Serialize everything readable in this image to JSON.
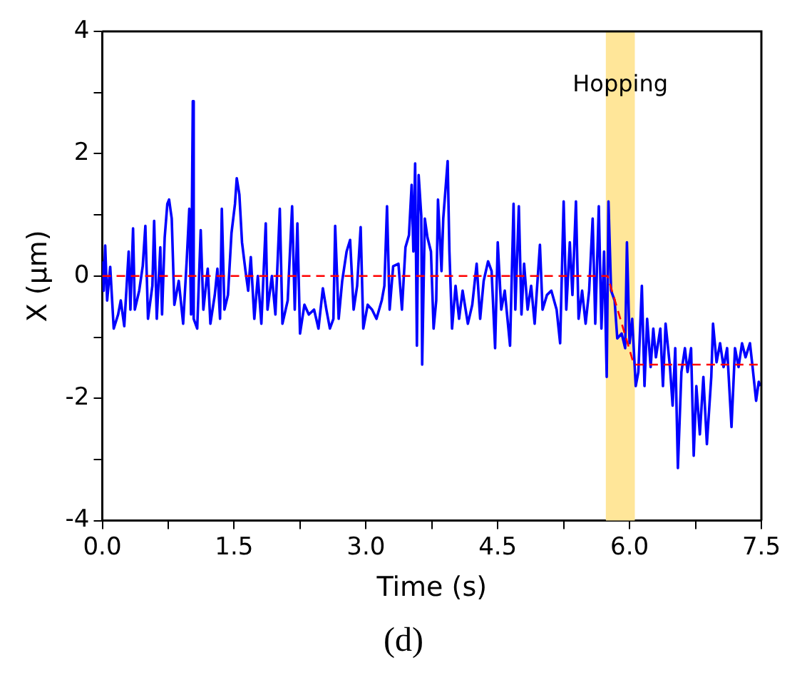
{
  "chart_data": {
    "type": "line",
    "xlabel": "Time (s)",
    "ylabel": "X (μm)",
    "annotations": [
      "(d)"
    ],
    "xlim": [
      0,
      7.5
    ],
    "xticks": [
      {
        "value": 0,
        "label": "0.0"
      },
      {
        "value": 0.75,
        "label": null
      },
      {
        "value": 1.5,
        "label": "1.5"
      },
      {
        "value": 2.25,
        "label": null
      },
      {
        "value": 3,
        "label": "3.0"
      },
      {
        "value": 3.75,
        "label": null
      },
      {
        "value": 4.5,
        "label": "4.5"
      },
      {
        "value": 5.25,
        "label": null
      },
      {
        "value": 6,
        "label": "6.0"
      },
      {
        "value": 6.75,
        "label": null
      },
      {
        "value": 7.5,
        "label": "7.5"
      }
    ],
    "ylim": [
      -4,
      4
    ],
    "yticks": [
      -4,
      {
        "value": -3,
        "label": null
      },
      -2,
      {
        "value": -1,
        "label": null
      },
      0,
      {
        "value": 1,
        "label": null
      },
      2,
      {
        "value": 3,
        "label": null
      },
      4
    ],
    "bands": [
      {
        "axis": "x",
        "from": 5.73,
        "to": 6.06,
        "label": "Hopping",
        "color": "#ffe699"
      }
    ],
    "series": [
      {
        "color": "#0000ff",
        "x": [
          0,
          0.016,
          0.033,
          0.055,
          0.09,
          0.13,
          0.18,
          0.21,
          0.25,
          0.3,
          0.32,
          0.35,
          0.37,
          0.42,
          0.46,
          0.49,
          0.52,
          0.57,
          0.59,
          0.62,
          0.66,
          0.68,
          0.71,
          0.74,
          0.76,
          0.79,
          0.82,
          0.87,
          0.92,
          0.96,
          0.99,
          1.01,
          1.03,
          1.04,
          1.08,
          1.12,
          1.15,
          1.2,
          1.23,
          1.28,
          1.31,
          1.34,
          1.36,
          1.39,
          1.43,
          1.47,
          1.51,
          1.53,
          1.56,
          1.59,
          1.63,
          1.66,
          1.69,
          1.73,
          1.77,
          1.81,
          1.86,
          1.88,
          1.93,
          1.97,
          2.02,
          2.05,
          2.11,
          2.16,
          2.19,
          2.22,
          2.25,
          2.3,
          2.35,
          2.41,
          2.46,
          2.51,
          2.55,
          2.59,
          2.63,
          2.65,
          2.69,
          2.73,
          2.78,
          2.82,
          2.86,
          2.9,
          2.94,
          2.97,
          3.02,
          3.07,
          3.12,
          3.18,
          3.21,
          3.24,
          3.27,
          3.31,
          3.37,
          3.41,
          3.45,
          3.49,
          3.52,
          3.54,
          3.56,
          3.58,
          3.6,
          3.63,
          3.64,
          3.67,
          3.7,
          3.74,
          3.77,
          3.8,
          3.82,
          3.86,
          3.88,
          3.93,
          3.95,
          3.98,
          4.02,
          4.06,
          4.1,
          4.16,
          4.21,
          4.26,
          4.3,
          4.34,
          4.39,
          4.43,
          4.47,
          4.5,
          4.54,
          4.58,
          4.64,
          4.68,
          4.7,
          4.74,
          4.77,
          4.8,
          4.84,
          4.88,
          4.92,
          4.98,
          5.01,
          5.06,
          5.11,
          5.17,
          5.21,
          5.25,
          5.28,
          5.32,
          5.35,
          5.39,
          5.42,
          5.46,
          5.5,
          5.54,
          5.58,
          5.61,
          5.65,
          5.68,
          5.71,
          5.74,
          5.76,
          5.79,
          5.83,
          5.86,
          5.91,
          5.95,
          5.97,
          6.0,
          6.03,
          6.07,
          6.1,
          6.14,
          6.17,
          6.2,
          6.24,
          6.27,
          6.3,
          6.35,
          6.38,
          6.41,
          6.46,
          6.49,
          6.52,
          6.55,
          6.59,
          6.63,
          6.66,
          6.7,
          6.73,
          6.76,
          6.8,
          6.84,
          6.88,
          6.93,
          6.95,
          6.99,
          7.03,
          7.07,
          7.11,
          7.16,
          7.2,
          7.24,
          7.28,
          7.32,
          7.37,
          7.4,
          7.44,
          7.47,
          7.49
        ],
        "values": [
          0.24,
          -0.24,
          0.5,
          -0.4,
          0.15,
          -0.86,
          -0.63,
          -0.4,
          -0.82,
          0.4,
          -0.55,
          0.78,
          -0.55,
          -0.24,
          0.16,
          0.82,
          -0.7,
          -0.16,
          0.9,
          -0.7,
          0.47,
          -0.63,
          0.63,
          1.18,
          1.25,
          0.94,
          -0.47,
          -0.08,
          -0.78,
          0.24,
          1.1,
          -0.63,
          2.86,
          -0.7,
          -0.86,
          0.75,
          -0.55,
          0.12,
          -0.78,
          -0.31,
          0.12,
          -0.7,
          1.1,
          -0.55,
          -0.31,
          0.7,
          1.18,
          1.6,
          1.33,
          0.55,
          0.08,
          -0.24,
          0.31,
          -0.7,
          0,
          -0.78,
          0.86,
          -0.55,
          0,
          -0.63,
          1.1,
          -0.78,
          -0.4,
          1.14,
          -0.55,
          0.86,
          -0.94,
          -0.47,
          -0.63,
          -0.55,
          -0.86,
          -0.2,
          -0.55,
          -0.86,
          -0.7,
          0.82,
          -0.7,
          -0.08,
          0.4,
          0.59,
          -0.55,
          -0.16,
          0.8,
          -0.86,
          -0.47,
          -0.55,
          -0.7,
          -0.4,
          -0.16,
          1.14,
          -0.55,
          0.16,
          0.2,
          -0.55,
          0.47,
          0.67,
          1.49,
          0.4,
          1.84,
          -1.14,
          1.65,
          0.98,
          -1.45,
          0.94,
          0.63,
          0.4,
          -0.86,
          -0.4,
          1.25,
          0.08,
          0.94,
          1.88,
          0.4,
          -0.86,
          -0.16,
          -0.7,
          -0.24,
          -0.78,
          -0.47,
          0.2,
          -0.7,
          -0.08,
          0.24,
          0.08,
          -1.18,
          0.55,
          -0.55,
          -0.24,
          -1.14,
          1.18,
          -0.55,
          1.14,
          -0.63,
          0.2,
          -0.55,
          -0.16,
          -0.78,
          0.51,
          -0.55,
          -0.31,
          -0.24,
          -0.55,
          -1.1,
          1.22,
          -0.55,
          0.55,
          -0.31,
          1.22,
          -0.7,
          -0.24,
          -0.78,
          -0.24,
          0.94,
          -0.78,
          1.14,
          -0.86,
          0.4,
          -1.65,
          1.22,
          -0.24,
          -0.4,
          -1.02,
          -0.94,
          -1.18,
          0.55,
          -1.1,
          -0.7,
          -1.8,
          -1.57,
          -0.16,
          -1.8,
          -0.7,
          -1.49,
          -0.86,
          -1.33,
          -0.86,
          -1.8,
          -0.78,
          -1.49,
          -2.12,
          -1.18,
          -3.14,
          -1.57,
          -1.18,
          -1.57,
          -1.18,
          -2.94,
          -1.8,
          -2.59,
          -1.65,
          -2.75,
          -1.65,
          -0.78,
          -1.41,
          -1.1,
          -1.49,
          -1.18,
          -2.47,
          -1.18,
          -1.49,
          -1.1,
          -1.33,
          -1.1,
          -1.49,
          -2.04,
          -1.73,
          -1.8
        ]
      },
      {
        "color": "#ff0000",
        "line_style": "dashed",
        "x": [
          0,
          5.75,
          6.05,
          7.5
        ],
        "values": [
          0,
          0,
          -1.45,
          -1.45
        ]
      }
    ]
  }
}
